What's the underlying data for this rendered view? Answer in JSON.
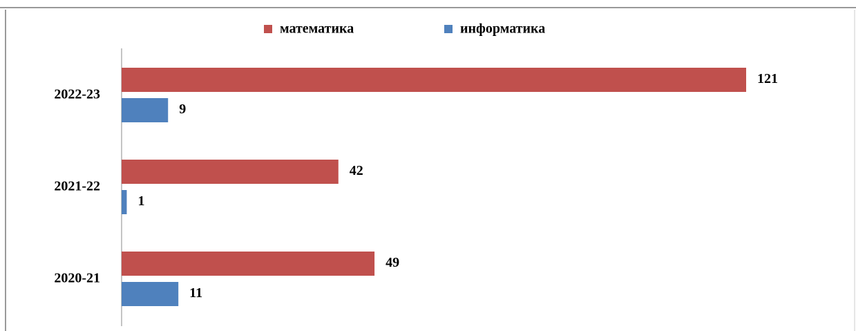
{
  "chart_data": {
    "type": "bar",
    "orientation": "horizontal",
    "categories": [
      "2022-23",
      "2021-22",
      "2020-21"
    ],
    "series": [
      {
        "name": "математика",
        "color": "#c0504d",
        "values": [
          121,
          42,
          49
        ]
      },
      {
        "name": "информатика",
        "color": "#4f81bd",
        "values": [
          9,
          1,
          11
        ]
      }
    ],
    "legend": "top"
  }
}
